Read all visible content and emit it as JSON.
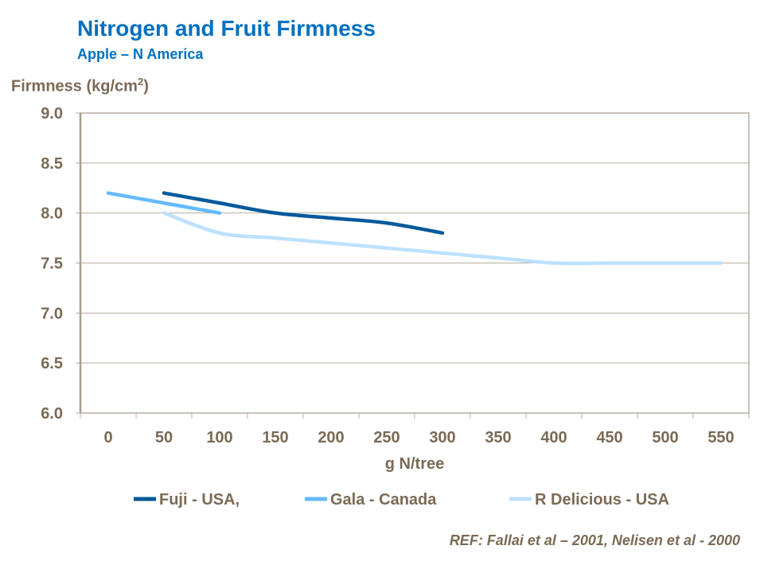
{
  "chart_data": {
    "type": "line",
    "title": "Nitrogen and Fruit Firmness",
    "subtitle": "Apple – N America",
    "ylabel": "Firmness (kg/cm",
    "ylabel_sup": "2",
    "ylabel_end": ")",
    "xlabel": "g N/tree",
    "categories": [
      "0",
      "50",
      "100",
      "150",
      "200",
      "250",
      "300",
      "350",
      "400",
      "450",
      "500",
      "550"
    ],
    "ylim": [
      6.0,
      9.0
    ],
    "yticks": [
      "6.0",
      "6.5",
      "7.0",
      "7.5",
      "8.0",
      "8.5",
      "9.0"
    ],
    "grid": true,
    "legend": "bottom",
    "series": [
      {
        "name": "Fuji - USA,",
        "color": "#00599c",
        "values": [
          null,
          8.2,
          8.1,
          8.0,
          7.95,
          7.9,
          7.8,
          null,
          null,
          null,
          null,
          null
        ]
      },
      {
        "name": "Gala - Canada",
        "color": "#66bbff",
        "values": [
          8.2,
          8.1,
          8.0,
          null,
          null,
          null,
          null,
          null,
          null,
          null,
          null,
          null
        ]
      },
      {
        "name": "R Delicious - USA",
        "color": "#bde1ff",
        "values": [
          null,
          8.0,
          7.8,
          7.75,
          7.7,
          7.65,
          7.6,
          7.55,
          7.5,
          7.5,
          7.5,
          7.5
        ]
      }
    ]
  },
  "reference": "REF: Fallai et al – 2001, Nelisen et al - 2000"
}
